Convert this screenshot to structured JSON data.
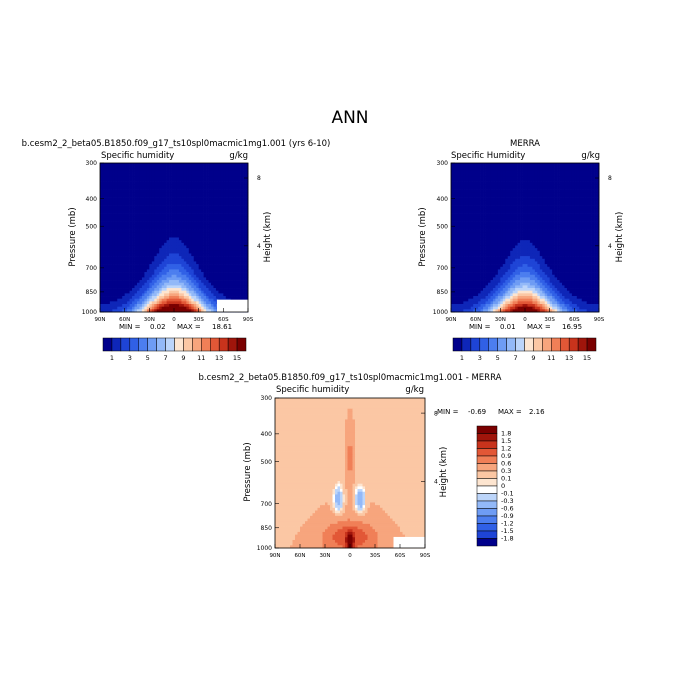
{
  "page_title": "ANN",
  "chart_data": [
    {
      "type": "heatmap",
      "subtype": "zonal-mean pressure-latitude contour",
      "title": "b.cesm2_2_beta05.B1850.f09_g17_ts10spl0macmic1mg1.001 (yrs 6-10)",
      "variable": "Specific humidity",
      "units": "g/kg",
      "ylabel": "Pressure (mb)",
      "ylabel_right": "Height (km)",
      "x_ticks": [
        "90N",
        "60N",
        "30N",
        "0",
        "30S",
        "60S",
        "90S"
      ],
      "y_ticks": [
        "300",
        "400",
        "500",
        "700",
        "850",
        "1000"
      ],
      "height_ticks": [
        "8",
        "4"
      ],
      "ylim": [
        1000,
        300
      ],
      "min_label": "MIN =",
      "min_value": "0.02",
      "max_label": "MAX =",
      "max_value": "18.61",
      "peak": 18.61
    },
    {
      "type": "heatmap",
      "subtype": "zonal-mean pressure-latitude contour",
      "title": "MERRA",
      "variable": "Specific Humidity",
      "units": "g/kg",
      "ylabel": "Pressure (mb)",
      "ylabel_right": "Height (km)",
      "x_ticks": [
        "90N",
        "60N",
        "30N",
        "0",
        "30S",
        "60S",
        "90S"
      ],
      "y_ticks": [
        "300",
        "400",
        "500",
        "700",
        "850",
        "1000"
      ],
      "height_ticks": [
        "8",
        "4"
      ],
      "ylim": [
        1000,
        300
      ],
      "min_label": "MIN =",
      "min_value": "0.01",
      "max_label": "MAX =",
      "max_value": "16.95",
      "peak": 16.95
    },
    {
      "type": "heatmap",
      "subtype": "difference pressure-latitude contour",
      "title": "b.cesm2_2_beta05.B1850.f09_g17_ts10spl0macmic1mg1.001 - MERRA",
      "variable": "Specific humidity",
      "units": "g/kg",
      "ylabel": "Pressure (mb)",
      "ylabel_right": "Height (km)",
      "x_ticks": [
        "90N",
        "60N",
        "30N",
        "0",
        "30S",
        "60S",
        "90S"
      ],
      "y_ticks": [
        "300",
        "400",
        "500",
        "700",
        "850",
        "1000"
      ],
      "height_ticks": [
        "8",
        "4"
      ],
      "ylim": [
        1000,
        300
      ],
      "min_label": "MIN =",
      "min_value": "-0.69",
      "max_label": "MAX =",
      "max_value": "2.16"
    }
  ],
  "colorbars": {
    "absolute": {
      "labels": [
        "1",
        "3",
        "5",
        "7",
        "9",
        "11",
        "13",
        "15"
      ],
      "colors": [
        "#00008b",
        "#0e26b8",
        "#1e44d6",
        "#3060e6",
        "#4c7eef",
        "#6e9cf4",
        "#93b9f8",
        "#bcd5fa",
        "#fde5d0",
        "#fbc7a4",
        "#f7a57d",
        "#f07f57",
        "#e25736",
        "#c8331c",
        "#a0150b",
        "#7a0000"
      ]
    },
    "difference": {
      "labels": [
        "1.8",
        "1.5",
        "1.2",
        "0.9",
        "0.6",
        "0.3",
        "0.1",
        "0",
        "-0.1",
        "-0.3",
        "-0.6",
        "-0.9",
        "-1.2",
        "-1.5",
        "-1.8"
      ],
      "colors": [
        "#7a0000",
        "#a0150b",
        "#c8331c",
        "#e25736",
        "#f07f57",
        "#f7a57d",
        "#fbc7a4",
        "#fde5d0",
        "#ffffff",
        "#bcd5fa",
        "#93b9f8",
        "#6e9cf4",
        "#4c7eef",
        "#3060e6",
        "#1e44d6",
        "#00008b"
      ]
    }
  }
}
